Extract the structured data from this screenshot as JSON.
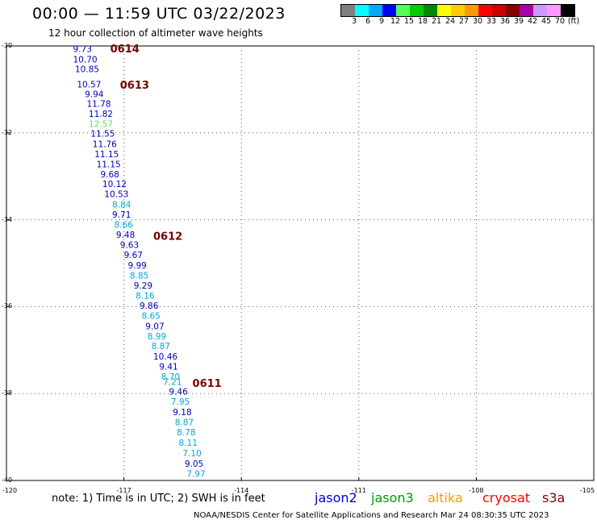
{
  "title": "00:00 — 11:59 UTC 03/22/2023",
  "subtitle": "12 hour collection of altimeter wave heights",
  "colors": {
    "jason2": "#0000cc",
    "jason3": "#009900",
    "altika": "#ff9900",
    "cryosat": "#ff0000",
    "s3a": "#880000",
    "pass_label": "#770000",
    "blue_obs": "#0000bb",
    "cyan_obs": "#00aadd",
    "green_obs": "#66dd66",
    "grid": "#555555"
  },
  "colorbar": {
    "colors": [
      "#808080",
      "#00ffff",
      "#00aaff",
      "#0000ff",
      "#55ff55",
      "#00cc00",
      "#008800",
      "#ffff00",
      "#ffcc00",
      "#ff9900",
      "#ff0000",
      "#cc0000",
      "#880000",
      "#aa00aa",
      "#cc99ff",
      "#ff99ff",
      "#000000"
    ],
    "labels": [
      "3",
      "6",
      "9",
      "12",
      "15",
      "18",
      "21",
      "24",
      "27",
      "30",
      "33",
      "36",
      "39",
      "42",
      "45",
      "70",
      "(ft)"
    ]
  },
  "map": {
    "lon_range": [
      -120,
      -105
    ],
    "lat_range": [
      -40,
      -30
    ],
    "lat_ticks": [
      "-30",
      "-32",
      "-34",
      "-36",
      "-38",
      "-40"
    ],
    "lon_ticks": [
      "-120",
      "-117",
      "-114",
      "-111",
      "-108",
      "-105"
    ]
  },
  "observations": [
    {
      "lon": -118.3,
      "lat": -30.14,
      "value": "9.73",
      "color": "blue"
    },
    {
      "lon": -118.3,
      "lat": -30.38,
      "value": "10.70",
      "color": "blue"
    },
    {
      "lon": -118.25,
      "lat": -30.6,
      "value": "10.85",
      "color": "blue"
    },
    {
      "lon": -118.2,
      "lat": -30.96,
      "value": "10.57",
      "color": "blue"
    },
    {
      "lon": -118.0,
      "lat": -31.18,
      "value": "9.94",
      "color": "blue"
    },
    {
      "lon": -117.95,
      "lat": -31.4,
      "value": "11.78",
      "color": "blue"
    },
    {
      "lon": -117.9,
      "lat": -31.63,
      "value": "11.82",
      "color": "blue"
    },
    {
      "lon": -117.9,
      "lat": -31.86,
      "value": "12.57",
      "color": "green"
    },
    {
      "lon": -117.85,
      "lat": -32.09,
      "value": "11.55",
      "color": "blue"
    },
    {
      "lon": -117.8,
      "lat": -32.33,
      "value": "11.76",
      "color": "blue"
    },
    {
      "lon": -117.75,
      "lat": -32.56,
      "value": "11.15",
      "color": "blue"
    },
    {
      "lon": -117.7,
      "lat": -32.79,
      "value": "11.15",
      "color": "blue"
    },
    {
      "lon": -117.6,
      "lat": -33.02,
      "value": "9.68",
      "color": "blue"
    },
    {
      "lon": -117.55,
      "lat": -33.25,
      "value": "10.12",
      "color": "blue"
    },
    {
      "lon": -117.5,
      "lat": -33.48,
      "value": "10.53",
      "color": "blue"
    },
    {
      "lon": -117.3,
      "lat": -33.72,
      "value": "8.84",
      "color": "cyan"
    },
    {
      "lon": -117.3,
      "lat": -33.95,
      "value": "9.71",
      "color": "blue"
    },
    {
      "lon": -117.25,
      "lat": -34.18,
      "value": "8.66",
      "color": "cyan"
    },
    {
      "lon": -117.2,
      "lat": -34.42,
      "value": "9.48",
      "color": "blue"
    },
    {
      "lon": -117.1,
      "lat": -34.65,
      "value": "9.63",
      "color": "blue"
    },
    {
      "lon": -117.0,
      "lat": -34.88,
      "value": "9.67",
      "color": "blue"
    },
    {
      "lon": -116.9,
      "lat": -35.12,
      "value": "9.99",
      "color": "blue"
    },
    {
      "lon": -116.85,
      "lat": -35.35,
      "value": "8.85",
      "color": "cyan"
    },
    {
      "lon": -116.75,
      "lat": -35.58,
      "value": "9.29",
      "color": "blue"
    },
    {
      "lon": -116.7,
      "lat": -35.82,
      "value": "8.16",
      "color": "cyan"
    },
    {
      "lon": -116.6,
      "lat": -36.05,
      "value": "9.86",
      "color": "blue"
    },
    {
      "lon": -116.55,
      "lat": -36.28,
      "value": "8.65",
      "color": "cyan"
    },
    {
      "lon": -116.45,
      "lat": -36.52,
      "value": "9.07",
      "color": "blue"
    },
    {
      "lon": -116.4,
      "lat": -36.75,
      "value": "8.99",
      "color": "cyan"
    },
    {
      "lon": -116.3,
      "lat": -36.98,
      "value": "8.87",
      "color": "cyan"
    },
    {
      "lon": -116.25,
      "lat": -37.22,
      "value": "10.46",
      "color": "blue"
    },
    {
      "lon": -116.1,
      "lat": -37.45,
      "value": "9.41",
      "color": "blue"
    },
    {
      "lon": -116.05,
      "lat": -37.68,
      "value": "8.70",
      "color": "cyan"
    },
    {
      "lon": -116.0,
      "lat": -37.8,
      "value": "7.21",
      "color": "cyan"
    },
    {
      "lon": -115.85,
      "lat": -38.02,
      "value": "9.46",
      "color": "blue"
    },
    {
      "lon": -115.8,
      "lat": -38.26,
      "value": "7.95",
      "color": "cyan"
    },
    {
      "lon": -115.75,
      "lat": -38.5,
      "value": "9.18",
      "color": "blue"
    },
    {
      "lon": -115.7,
      "lat": -38.73,
      "value": "8.87",
      "color": "cyan"
    },
    {
      "lon": -115.65,
      "lat": -38.96,
      "value": "8.78",
      "color": "cyan"
    },
    {
      "lon": -115.6,
      "lat": -39.2,
      "value": "8.11",
      "color": "cyan"
    },
    {
      "lon": -115.5,
      "lat": -39.44,
      "value": "7.10",
      "color": "cyan"
    },
    {
      "lon": -115.45,
      "lat": -39.68,
      "value": "9.05",
      "color": "blue"
    },
    {
      "lon": -115.4,
      "lat": -39.92,
      "value": "7.97",
      "color": "cyan"
    }
  ],
  "pass_labels": [
    {
      "lon": -117.35,
      "lat": -30.15,
      "text": "0614"
    },
    {
      "lon": -117.1,
      "lat": -30.98,
      "text": "0613"
    },
    {
      "lon": -116.25,
      "lat": -34.46,
      "text": "0612"
    },
    {
      "lon": -115.25,
      "lat": -37.85,
      "text": "0611"
    }
  ],
  "note": "note:  1) Time is in UTC;  2) SWH is in feet",
  "satellites": [
    "jason2",
    "jason3",
    "altika",
    "cryosat",
    "s3a"
  ],
  "credit": "NOAA/NESDIS Center for Satellite Applications and Research    Mar 24 08:30:35 UTC 2023"
}
